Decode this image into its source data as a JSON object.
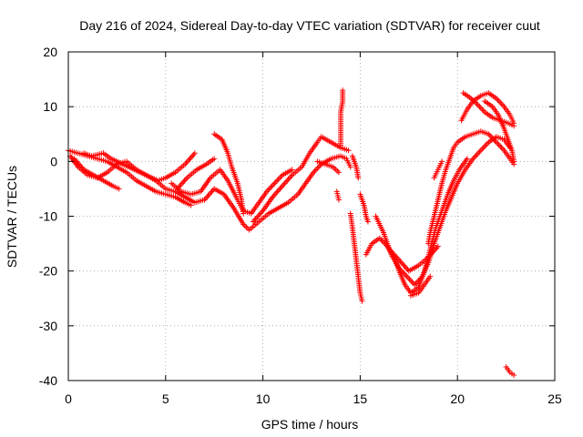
{
  "chart_data": {
    "type": "scatter",
    "title": "Day 216 of 2024, Sidereal Day-to-day VTEC variation (SDTVAR) for receiver cuut",
    "xlabel": "GPS time / hours",
    "ylabel": "SDTVAR / TECUs",
    "xlim": [
      0,
      25
    ],
    "ylim": [
      -40,
      20
    ],
    "x_ticks": [
      0,
      5,
      10,
      15,
      20,
      25
    ],
    "y_ticks": [
      -40,
      -30,
      -20,
      -10,
      0,
      10,
      20
    ],
    "grid": true,
    "marker": "+",
    "series": [
      {
        "name": "SDTVAR",
        "color": "#ff0000",
        "tracks": [
          {
            "points": [
              [
                0.1,
                1.0
              ],
              [
                0.5,
                -1.0
              ],
              [
                1.0,
                -2.5
              ],
              [
                1.5,
                -3.0
              ],
              [
                2.0,
                -2.0
              ],
              [
                2.5,
                -0.5
              ],
              [
                3.0,
                0.0
              ],
              [
                3.5,
                -1.5
              ],
              [
                4.0,
                -2.5
              ],
              [
                4.5,
                -3.5
              ],
              [
                5.0,
                -5.0
              ],
              [
                5.5,
                -5.5
              ],
              [
                6.0,
                -6.5
              ],
              [
                6.5,
                -7.5
              ],
              [
                7.0,
                -7.0
              ],
              [
                7.5,
                -5.0
              ],
              [
                8.0,
                -6.0
              ],
              [
                8.5,
                -8.5
              ],
              [
                9.0,
                -11.5
              ],
              [
                9.3,
                -12.5
              ],
              [
                9.8,
                -11.0
              ],
              [
                10.3,
                -9.5
              ],
              [
                10.8,
                -8.5
              ],
              [
                11.3,
                -7.5
              ],
              [
                11.8,
                -6.0
              ],
              [
                12.2,
                -4.0
              ],
              [
                12.6,
                -2.0
              ],
              [
                13.0,
                -0.5
              ],
              [
                13.5,
                0.5
              ],
              [
                14.0,
                1.0
              ],
              [
                14.3,
                0.5
              ],
              [
                14.5,
                -1.0
              ]
            ]
          },
          {
            "points": [
              [
                0.0,
                2.0
              ],
              [
                0.5,
                1.5
              ],
              [
                1.0,
                1.0
              ],
              [
                1.5,
                0.5
              ],
              [
                2.0,
                0.0
              ],
              [
                2.5,
                -1.0
              ],
              [
                3.0,
                -2.0
              ],
              [
                3.5,
                -3.5
              ],
              [
                4.0,
                -4.5
              ],
              [
                4.5,
                -5.5
              ],
              [
                5.0,
                -6.0
              ],
              [
                5.5,
                -6.5
              ],
              [
                6.0,
                -7.5
              ],
              [
                6.3,
                -8.0
              ]
            ]
          },
          {
            "points": [
              [
                0.3,
                0.5
              ],
              [
                0.8,
                -1.5
              ],
              [
                1.3,
                -2.5
              ],
              [
                1.8,
                -3.5
              ],
              [
                2.3,
                -4.5
              ],
              [
                2.6,
                -5.0
              ]
            ]
          },
          {
            "points": [
              [
                0.8,
                1.5
              ],
              [
                1.2,
                1.0
              ],
              [
                1.8,
                1.5
              ],
              [
                2.2,
                0.5
              ],
              [
                2.8,
                -0.5
              ],
              [
                3.4,
                -1.5
              ],
              [
                4.0,
                -2.5
              ],
              [
                4.6,
                -3.5
              ],
              [
                5.0,
                -3.0
              ],
              [
                5.5,
                -2.0
              ],
              [
                6.0,
                -0.5
              ],
              [
                6.5,
                1.5
              ]
            ]
          },
          {
            "points": [
              [
                5.3,
                -4.0
              ],
              [
                5.8,
                -5.5
              ],
              [
                6.3,
                -6.0
              ],
              [
                6.8,
                -5.5
              ],
              [
                7.3,
                -3.0
              ],
              [
                7.8,
                -1.5
              ],
              [
                8.2,
                -3.5
              ],
              [
                8.7,
                -7.0
              ],
              [
                9.0,
                -9.0
              ],
              [
                9.4,
                -9.5
              ],
              [
                9.8,
                -7.5
              ],
              [
                10.2,
                -5.5
              ],
              [
                10.6,
                -4.0
              ],
              [
                11.0,
                -2.5
              ],
              [
                11.5,
                -1.5
              ]
            ]
          },
          {
            "points": [
              [
                5.6,
                -5.0
              ],
              [
                6.1,
                -3.0
              ],
              [
                6.6,
                -1.5
              ],
              [
                7.1,
                -0.5
              ],
              [
                7.5,
                0.5
              ]
            ]
          },
          {
            "points": [
              [
                7.5,
                5.0
              ],
              [
                7.9,
                4.0
              ],
              [
                8.2,
                1.5
              ],
              [
                8.4,
                -1.0
              ],
              [
                8.7,
                -4.0
              ],
              [
                8.9,
                -7.0
              ],
              [
                9.0,
                -9.5
              ]
            ]
          },
          {
            "points": [
              [
                9.5,
                -11.0
              ],
              [
                10.0,
                -9.0
              ],
              [
                10.5,
                -6.5
              ],
              [
                11.0,
                -4.5
              ],
              [
                11.5,
                -2.5
              ],
              [
                12.0,
                -1.0
              ],
              [
                12.4,
                1.5
              ],
              [
                12.8,
                3.5
              ],
              [
                13.0,
                4.5
              ],
              [
                13.5,
                3.5
              ],
              [
                14.0,
                2.5
              ],
              [
                14.4,
                2.0
              ]
            ]
          },
          {
            "points": [
              [
                12.8,
                0.0
              ],
              [
                13.2,
                -0.5
              ],
              [
                13.6,
                -1.0
              ],
              [
                13.9,
                -2.0
              ]
            ]
          },
          {
            "points": [
              [
                14.6,
                1.0
              ],
              [
                14.8,
                -1.0
              ],
              [
                14.9,
                -3.0
              ]
            ]
          },
          {
            "points": [
              [
                14.1,
                13.0
              ],
              [
                14.1,
                11.0
              ],
              [
                14.0,
                9.0
              ],
              [
                14.0,
                7.0
              ],
              [
                14.0,
                5.0
              ],
              [
                14.0,
                3.0
              ]
            ]
          },
          {
            "points": [
              [
                13.8,
                -5.5
              ],
              [
                13.9,
                -7.0
              ]
            ]
          },
          {
            "points": [
              [
                15.0,
                -6.0
              ],
              [
                15.2,
                -8.0
              ],
              [
                15.3,
                -10.0
              ],
              [
                15.4,
                -11.0
              ]
            ]
          },
          {
            "points": [
              [
                14.5,
                -9.5
              ],
              [
                14.6,
                -12.0
              ],
              [
                14.7,
                -15.0
              ],
              [
                14.8,
                -18.0
              ],
              [
                14.9,
                -21.0
              ],
              [
                15.0,
                -24.0
              ],
              [
                15.1,
                -25.5
              ]
            ]
          },
          {
            "points": [
              [
                15.3,
                -17.0
              ],
              [
                15.6,
                -15.0
              ],
              [
                16.0,
                -14.0
              ],
              [
                16.4,
                -15.5
              ],
              [
                16.8,
                -18.0
              ],
              [
                17.0,
                -20.0
              ],
              [
                17.3,
                -22.5
              ],
              [
                17.6,
                -24.0
              ],
              [
                18.0,
                -23.0
              ],
              [
                18.3,
                -20.0
              ],
              [
                18.6,
                -16.0
              ],
              [
                18.9,
                -12.0
              ],
              [
                19.2,
                -9.0
              ],
              [
                19.5,
                -6.0
              ],
              [
                19.8,
                -3.5
              ],
              [
                20.1,
                -1.5
              ],
              [
                20.5,
                0.5
              ]
            ]
          },
          {
            "points": [
              [
                15.8,
                -10.0
              ],
              [
                16.2,
                -13.0
              ],
              [
                16.6,
                -17.0
              ],
              [
                17.0,
                -19.5
              ],
              [
                17.4,
                -21.0
              ],
              [
                17.8,
                -22.5
              ],
              [
                18.2,
                -21.0
              ],
              [
                18.5,
                -18.5
              ],
              [
                18.8,
                -15.0
              ],
              [
                19.1,
                -12.0
              ],
              [
                19.4,
                -9.0
              ],
              [
                19.7,
                -6.5
              ],
              [
                20.0,
                -4.0
              ],
              [
                20.4,
                -1.5
              ],
              [
                20.8,
                0.5
              ],
              [
                21.2,
                2.0
              ],
              [
                21.6,
                3.5
              ],
              [
                22.0,
                4.5
              ],
              [
                22.4,
                4.0
              ],
              [
                22.7,
                2.5
              ]
            ]
          },
          {
            "points": [
              [
                16.5,
                -16.0
              ],
              [
                17.0,
                -18.0
              ],
              [
                17.5,
                -20.0
              ],
              [
                18.0,
                -19.0
              ],
              [
                18.5,
                -17.5
              ],
              [
                19.0,
                -15.5
              ]
            ]
          },
          {
            "points": [
              [
                17.6,
                -24.5
              ],
              [
                18.0,
                -24.0
              ],
              [
                18.3,
                -22.5
              ],
              [
                18.6,
                -21.0
              ]
            ]
          },
          {
            "points": [
              [
                18.8,
                -3.0
              ],
              [
                19.0,
                -1.5
              ],
              [
                19.2,
                0.0
              ]
            ]
          },
          {
            "points": [
              [
                18.5,
                -15.0
              ],
              [
                18.6,
                -13.0
              ],
              [
                18.8,
                -10.0
              ],
              [
                19.0,
                -7.0
              ],
              [
                19.2,
                -4.0
              ],
              [
                19.4,
                -1.5
              ],
              [
                19.6,
                0.5
              ],
              [
                19.8,
                2.5
              ],
              [
                20.0,
                3.5
              ],
              [
                20.4,
                4.5
              ],
              [
                20.8,
                5.0
              ],
              [
                21.2,
                5.5
              ],
              [
                21.6,
                5.0
              ],
              [
                22.0,
                3.5
              ],
              [
                22.4,
                2.0
              ],
              [
                22.7,
                0.5
              ],
              [
                22.9,
                -0.5
              ]
            ]
          },
          {
            "points": [
              [
                20.2,
                7.5
              ],
              [
                20.5,
                9.5
              ],
              [
                20.8,
                11.0
              ],
              [
                21.2,
                12.0
              ],
              [
                21.6,
                12.5
              ],
              [
                22.0,
                11.5
              ],
              [
                22.4,
                10.0
              ],
              [
                22.7,
                8.5
              ],
              [
                22.9,
                7.0
              ]
            ]
          },
          {
            "points": [
              [
                20.3,
                12.5
              ],
              [
                20.7,
                11.5
              ],
              [
                21.0,
                10.5
              ],
              [
                21.4,
                9.0
              ],
              [
                21.8,
                8.0
              ],
              [
                22.2,
                7.5
              ],
              [
                22.6,
                7.0
              ],
              [
                22.9,
                6.5
              ]
            ]
          },
          {
            "points": [
              [
                21.4,
                11.0
              ],
              [
                21.8,
                10.0
              ],
              [
                22.1,
                8.5
              ],
              [
                22.4,
                6.0
              ],
              [
                22.6,
                4.0
              ],
              [
                22.8,
                2.0
              ],
              [
                22.9,
                0.0
              ]
            ]
          },
          {
            "points": [
              [
                22.5,
                -37.5
              ],
              [
                22.7,
                -38.5
              ],
              [
                22.9,
                -39.0
              ]
            ]
          }
        ]
      }
    ]
  }
}
